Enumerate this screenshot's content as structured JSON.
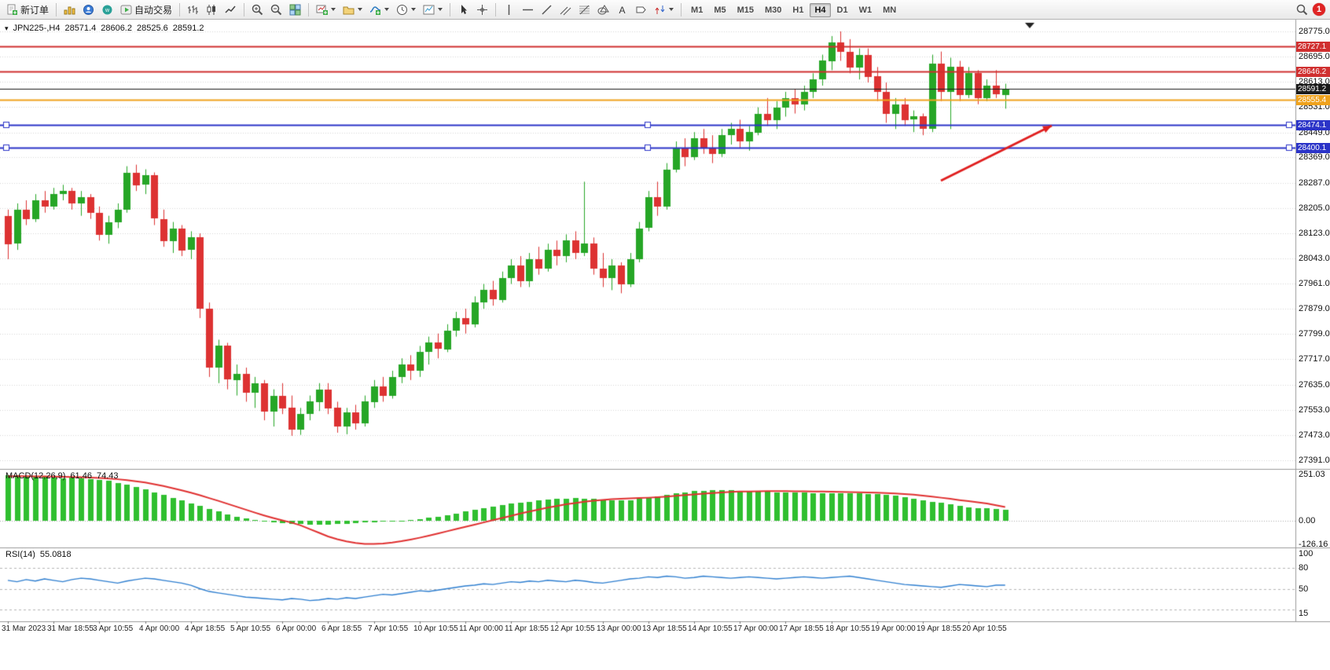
{
  "toolbar": {
    "new_order_label": "新订单",
    "autotrade_label": "自动交易",
    "periods": [
      "M1",
      "M5",
      "M15",
      "M30",
      "H1",
      "H4",
      "D1",
      "W1",
      "MN"
    ],
    "active_period": "H4",
    "badge_count": "1"
  },
  "chart_data": {
    "type": "candlestick",
    "symbol_label": "JPN225-,H4",
    "ohlc_current": {
      "open": "28571.4",
      "high": "28606.2",
      "low": "28525.6",
      "close": "28591.2"
    },
    "colors": {
      "up": "#26a626",
      "down": "#dd3232",
      "grid": "#d7d7d7",
      "separator": "#9a9a9a"
    },
    "price_axis": {
      "min": 27391.0,
      "max": 28775.0,
      "ticks": [
        "28775.0",
        "28695.0",
        "28613.0",
        "28531.0",
        "28449.0",
        "28369.0",
        "28287.0",
        "28205.0",
        "28123.0",
        "28043.0",
        "27961.0",
        "27879.0",
        "27799.0",
        "27717.0",
        "27635.0",
        "27553.0",
        "27473.0",
        "27391.0"
      ]
    },
    "time_labels": [
      "31 Mar 2023",
      "31 Mar 18:55",
      "3 Apr 10:55",
      "4 Apr 00:00",
      "4 Apr 18:55",
      "5 Apr 10:55",
      "6 Apr 00:00",
      "6 Apr 18:55",
      "7 Apr 10:55",
      "10 Apr 10:55",
      "11 Apr 00:00",
      "11 Apr 18:55",
      "12 Apr 10:55",
      "13 Apr 00:00",
      "13 Apr 18:55",
      "14 Apr 10:55",
      "17 Apr 00:00",
      "17 Apr 18:55",
      "18 Apr 10:55",
      "19 Apr 00:00",
      "19 Apr 18:55",
      "20 Apr 10:55"
    ],
    "levels": [
      {
        "value": 28727.1,
        "label": "28727.1",
        "color": "#d03030",
        "width": 2,
        "selected": false
      },
      {
        "value": 28646.2,
        "label": "28646.2",
        "color": "#d03030",
        "width": 2,
        "selected": false
      },
      {
        "value": 28555.4,
        "label": "28555.4",
        "color": "#efa21d",
        "width": 2,
        "selected": false
      },
      {
        "value": 28474.1,
        "label": "28474.1",
        "color": "#2b34c8",
        "width": 2,
        "selected": true
      },
      {
        "value": 28400.1,
        "label": "28400.1",
        "color": "#2b34c8",
        "width": 2,
        "selected": true
      }
    ],
    "current_price_line": {
      "value": 28591.2,
      "label": "28591.2",
      "color": "#1b1b1b"
    },
    "arrow_annotation": {
      "from": [
        1197,
        205
      ],
      "to": [
        1338,
        135
      ],
      "color": "#e01f1f"
    },
    "candles": [
      [
        28180,
        28200,
        28040,
        28090
      ],
      [
        28090,
        28220,
        28070,
        28200
      ],
      [
        28200,
        28230,
        28150,
        28170
      ],
      [
        28170,
        28250,
        28160,
        28230
      ],
      [
        28230,
        28260,
        28190,
        28210
      ],
      [
        28210,
        28270,
        28200,
        28250
      ],
      [
        28250,
        28280,
        28230,
        28260
      ],
      [
        28260,
        28270,
        28200,
        28220
      ],
      [
        28220,
        28260,
        28180,
        28240
      ],
      [
        28240,
        28250,
        28170,
        28190
      ],
      [
        28190,
        28210,
        28100,
        28120
      ],
      [
        28120,
        28180,
        28090,
        28160
      ],
      [
        28160,
        28220,
        28140,
        28200
      ],
      [
        28200,
        28340,
        28190,
        28320
      ],
      [
        28320,
        28345,
        28260,
        28280
      ],
      [
        28280,
        28330,
        28250,
        28310
      ],
      [
        28310,
        28320,
        28150,
        28170
      ],
      [
        28170,
        28200,
        28080,
        28100
      ],
      [
        28100,
        28160,
        28060,
        28140
      ],
      [
        28140,
        28150,
        28050,
        28070
      ],
      [
        28070,
        28130,
        28040,
        28110
      ],
      [
        28110,
        28123,
        27850,
        27880
      ],
      [
        27880,
        27900,
        27660,
        27690
      ],
      [
        27690,
        27780,
        27640,
        27760
      ],
      [
        27760,
        27770,
        27620,
        27650
      ],
      [
        27650,
        27700,
        27600,
        27670
      ],
      [
        27670,
        27690,
        27580,
        27610
      ],
      [
        27610,
        27660,
        27560,
        27640
      ],
      [
        27640,
        27650,
        27520,
        27550
      ],
      [
        27550,
        27620,
        27500,
        27600
      ],
      [
        27600,
        27640,
        27540,
        27560
      ],
      [
        27560,
        27600,
        27470,
        27490
      ],
      [
        27490,
        27560,
        27473,
        27540
      ],
      [
        27540,
        27600,
        27520,
        27580
      ],
      [
        27580,
        27640,
        27550,
        27620
      ],
      [
        27620,
        27640,
        27540,
        27560
      ],
      [
        27560,
        27580,
        27480,
        27500
      ],
      [
        27500,
        27560,
        27475,
        27545
      ],
      [
        27545,
        27570,
        27490,
        27510
      ],
      [
        27510,
        27600,
        27500,
        27580
      ],
      [
        27580,
        27650,
        27560,
        27630
      ],
      [
        27630,
        27660,
        27580,
        27600
      ],
      [
        27600,
        27680,
        27590,
        27660
      ],
      [
        27660,
        27720,
        27640,
        27700
      ],
      [
        27700,
        27730,
        27650,
        27680
      ],
      [
        27680,
        27760,
        27660,
        27740
      ],
      [
        27740,
        27790,
        27700,
        27770
      ],
      [
        27770,
        27800,
        27720,
        27750
      ],
      [
        27750,
        27830,
        27740,
        27810
      ],
      [
        27810,
        27870,
        27790,
        27850
      ],
      [
        27850,
        27880,
        27800,
        27830
      ],
      [
        27830,
        27920,
        27820,
        27900
      ],
      [
        27900,
        27960,
        27880,
        27940
      ],
      [
        27940,
        27970,
        27890,
        27910
      ],
      [
        27910,
        28000,
        27900,
        27980
      ],
      [
        27980,
        28040,
        27960,
        28020
      ],
      [
        28020,
        28050,
        27950,
        27970
      ],
      [
        27970,
        28060,
        27950,
        28040
      ],
      [
        28040,
        28080,
        27990,
        28010
      ],
      [
        28010,
        28090,
        28000,
        28070
      ],
      [
        28070,
        28100,
        28020,
        28050
      ],
      [
        28050,
        28120,
        28030,
        28100
      ],
      [
        28100,
        28130,
        28040,
        28060
      ],
      [
        28060,
        28290,
        28050,
        28090
      ],
      [
        28090,
        28110,
        27990,
        28010
      ],
      [
        28010,
        28060,
        27950,
        27980
      ],
      [
        27980,
        28040,
        27940,
        28020
      ],
      [
        28020,
        28030,
        27930,
        27960
      ],
      [
        27960,
        28060,
        27950,
        28040
      ],
      [
        28040,
        28160,
        28030,
        28140
      ],
      [
        28140,
        28260,
        28130,
        28240
      ],
      [
        28240,
        28290,
        28180,
        28210
      ],
      [
        28210,
        28350,
        28200,
        28330
      ],
      [
        28330,
        28420,
        28320,
        28400
      ],
      [
        28400,
        28430,
        28340,
        28370
      ],
      [
        28370,
        28450,
        28360,
        28430
      ],
      [
        28430,
        28460,
        28380,
        28400
      ],
      [
        28400,
        28440,
        28350,
        28380
      ],
      [
        28380,
        28460,
        28370,
        28440
      ],
      [
        28440,
        28480,
        28410,
        28460
      ],
      [
        28460,
        28490,
        28400,
        28420
      ],
      [
        28420,
        28470,
        28390,
        28450
      ],
      [
        28450,
        28530,
        28440,
        28510
      ],
      [
        28510,
        28560,
        28470,
        28490
      ],
      [
        28490,
        28550,
        28460,
        28530
      ],
      [
        28530,
        28580,
        28500,
        28560
      ],
      [
        28560,
        28590,
        28510,
        28540
      ],
      [
        28540,
        28600,
        28520,
        28580
      ],
      [
        28580,
        28640,
        28560,
        28620
      ],
      [
        28620,
        28700,
        28600,
        28680
      ],
      [
        28680,
        28760,
        28650,
        28740
      ],
      [
        28740,
        28775,
        28680,
        28710
      ],
      [
        28710,
        28750,
        28640,
        28660
      ],
      [
        28660,
        28720,
        28620,
        28700
      ],
      [
        28700,
        28720,
        28610,
        28630
      ],
      [
        28630,
        28660,
        28550,
        28580
      ],
      [
        28580,
        28610,
        28480,
        28510
      ],
      [
        28510,
        28560,
        28460,
        28540
      ],
      [
        28540,
        28560,
        28470,
        28490
      ],
      [
        28490,
        28520,
        28450,
        28500
      ],
      [
        28500,
        28510,
        28440,
        28460
      ],
      [
        28460,
        28700,
        28450,
        28670
      ],
      [
        28670,
        28710,
        28550,
        28580
      ],
      [
        28580,
        28690,
        28460,
        28660
      ],
      [
        28660,
        28680,
        28550,
        28570
      ],
      [
        28570,
        28660,
        28560,
        28640
      ],
      [
        28640,
        28650,
        28540,
        28560
      ],
      [
        28560,
        28620,
        28550,
        28600
      ],
      [
        28600,
        28650,
        28560,
        28571
      ],
      [
        28571.4,
        28606.2,
        28525.6,
        28591.2
      ]
    ],
    "indicators": {
      "macd": {
        "name": "MACD(12,26,9)",
        "main_value": "61.46",
        "signal_value": "74.43",
        "axis_ticks": [
          "251.03",
          "0.00",
          "-126.16"
        ],
        "colors": {
          "histogram": "#2fbf2f",
          "signal": "#e03131"
        },
        "histogram": [
          245,
          248,
          242,
          238,
          240,
          235,
          230,
          232,
          228,
          225,
          220,
          215,
          205,
          195,
          185,
          170,
          155,
          140,
          125,
          110,
          95,
          80,
          65,
          50,
          35,
          22,
          12,
          5,
          -2,
          -8,
          -12,
          -15,
          -18,
          -20,
          -22,
          -20,
          -18,
          -15,
          -12,
          -10,
          -8,
          -5,
          -2,
          2,
          5,
          10,
          15,
          22,
          30,
          40,
          50,
          60,
          70,
          78,
          85,
          92,
          98,
          104,
          110,
          115,
          118,
          120,
          122,
          120,
          118,
          115,
          112,
          110,
          112,
          118,
          125,
          132,
          140,
          148,
          155,
          160,
          163,
          165,
          166,
          165,
          163,
          160,
          158,
          156,
          155,
          154,
          153,
          152,
          151,
          150,
          150,
          149,
          148,
          147,
          146,
          144,
          140,
          135,
          128,
          120,
          112,
          104,
          96,
          88,
          80,
          74,
          70,
          66,
          63,
          61.46
        ],
        "signal": [
          240,
          241,
          241,
          240,
          240,
          239,
          238,
          237,
          236,
          234,
          232,
          229,
          225,
          220,
          214,
          207,
          198,
          188,
          177,
          165,
          152,
          138,
          123,
          108,
          92,
          76,
          60,
          44,
          29,
          15,
          2,
          -10,
          -25,
          -45,
          -65,
          -85,
          -100,
          -112,
          -120,
          -126,
          -126,
          -123,
          -118,
          -111,
          -102,
          -92,
          -81,
          -69,
          -57,
          -45,
          -33,
          -21,
          -9,
          3,
          15,
          27,
          39,
          50,
          61,
          71,
          80,
          89,
          96,
          103,
          109,
          113,
          117,
          119,
          121,
          123,
          125,
          128,
          131,
          135,
          139,
          143,
          147,
          150,
          153,
          156,
          158,
          159,
          160,
          161,
          161,
          161,
          160,
          160,
          159,
          158,
          157,
          156,
          155,
          154,
          153,
          152,
          150,
          148,
          145,
          141,
          136,
          131,
          125,
          119,
          112,
          106,
          100,
          94,
          84,
          74.43
        ]
      },
      "rsi": {
        "name": "RSI(14)",
        "value": "55.0818",
        "axis_ticks": [
          "100",
          "80",
          "50",
          "15"
        ],
        "levels": [
          80,
          50,
          20
        ],
        "color": "#2f7fd0",
        "values": [
          62,
          60,
          63,
          61,
          64,
          62,
          60,
          63,
          65,
          64,
          62,
          60,
          58,
          61,
          63,
          65,
          64,
          62,
          60,
          58,
          55,
          50,
          46,
          44,
          42,
          40,
          38,
          37,
          36,
          35,
          34,
          36,
          35,
          33,
          34,
          36,
          35,
          37,
          36,
          38,
          40,
          42,
          41,
          43,
          45,
          47,
          46,
          48,
          50,
          52,
          54,
          55,
          57,
          56,
          58,
          60,
          59,
          61,
          60,
          62,
          61,
          60,
          62,
          61,
          59,
          58,
          60,
          62,
          64,
          65,
          67,
          66,
          68,
          67,
          65,
          66,
          68,
          67,
          66,
          65,
          66,
          67,
          66,
          65,
          64,
          65,
          66,
          67,
          66,
          65,
          66,
          67,
          68,
          66,
          64,
          62,
          60,
          58,
          56,
          55,
          54,
          53,
          52,
          54,
          56,
          55,
          54,
          53,
          55,
          55.08
        ]
      }
    }
  }
}
